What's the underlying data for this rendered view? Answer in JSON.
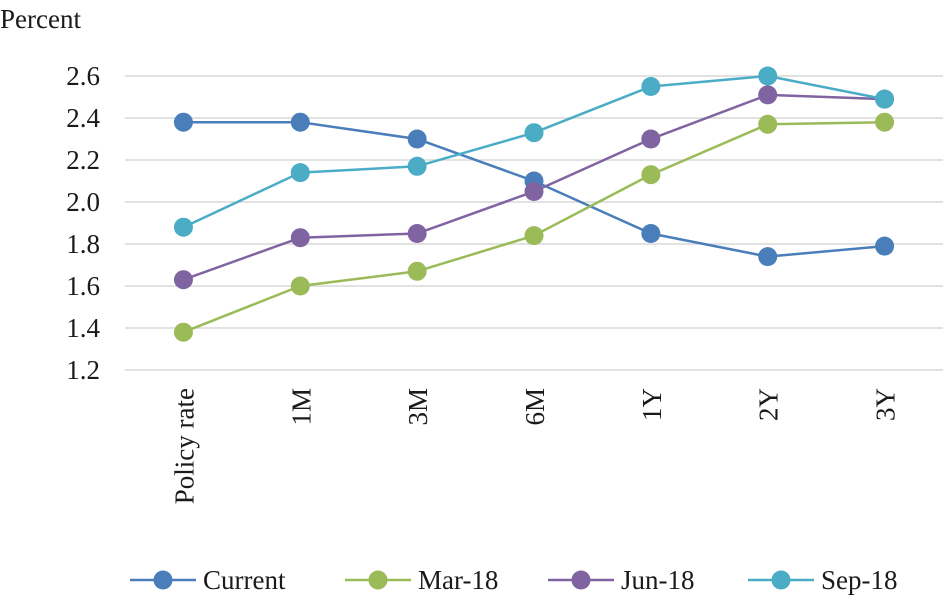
{
  "chart_data": {
    "type": "line",
    "ylabel": "Percent",
    "xlabel": "",
    "categories": [
      "Policy rate",
      "1M",
      "3M",
      "6M",
      "1Y",
      "2Y",
      "3Y"
    ],
    "ylim": [
      1.2,
      2.6
    ],
    "yticks": [
      "1.2",
      "1.4",
      "1.6",
      "1.8",
      "2.0",
      "2.2",
      "2.4",
      "2.6"
    ],
    "grid": true,
    "legend": "bottom",
    "series": [
      {
        "name": "Current",
        "color": "#4a7ebb",
        "values": [
          2.38,
          2.38,
          2.3,
          2.1,
          1.85,
          1.74,
          1.79
        ]
      },
      {
        "name": "Mar-18",
        "color": "#9bbb59",
        "values": [
          1.38,
          1.6,
          1.67,
          1.84,
          2.13,
          2.37,
          2.38
        ]
      },
      {
        "name": "Jun-18",
        "color": "#8064a2",
        "values": [
          1.63,
          1.83,
          1.85,
          2.05,
          2.3,
          2.51,
          2.49
        ]
      },
      {
        "name": "Sep-18",
        "color": "#4bacc6",
        "values": [
          1.88,
          2.14,
          2.17,
          2.33,
          2.55,
          2.6,
          2.49
        ]
      }
    ]
  }
}
